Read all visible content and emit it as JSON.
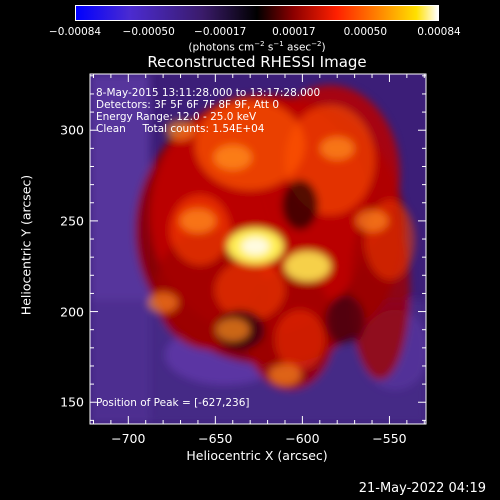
{
  "chart_data": {
    "type": "heatmap",
    "title": "Reconstructed RHESSI Image",
    "xlabel": "Heliocentric X (arcsec)",
    "ylabel": "Heliocentric Y (arcsec)",
    "xlim": [
      -722,
      -529
    ],
    "ylim": [
      138,
      331
    ],
    "xticks": [
      -700,
      -650,
      -600,
      -550
    ],
    "yticks": [
      150,
      200,
      250,
      300
    ],
    "xtick_labels": [
      "−700",
      "−650",
      "−600",
      "−550"
    ],
    "ytick_labels": [
      "150",
      "200",
      "250",
      "300"
    ],
    "info_lines": [
      "8-May-2015 13:11:28.000 to 13:17:28.000",
      "Detectors: 3F 5F 6F 7F 8F 9F, Att 0",
      "Energy Range: 12.0 - 25.0 keV",
      "Clean     Total counts: 1.54E+04"
    ],
    "peak_label": "Position of Peak = [-627,236]",
    "peak": [
      -627,
      236
    ],
    "colorbar": {
      "range": [
        -0.00084,
        0.00084
      ],
      "tick_values": [
        -0.00084,
        -0.0005,
        -0.00017,
        0.00017,
        0.0005,
        0.00084
      ],
      "tick_labels": [
        "−0.00084",
        "−0.00050",
        "−0.00017",
        "0.00017",
        "0.00050",
        "0.00084"
      ],
      "units_label": "(photons cm",
      "units_exp1": "−2",
      "units_mid": " s",
      "units_exp2": "−1",
      "units_mid2": " asec",
      "units_exp3": "−2",
      "units_end": ")"
    },
    "sources": [
      {
        "x": -627,
        "y": 236,
        "intensity": 1.0
      },
      {
        "x": -597,
        "y": 225,
        "intensity": 0.75
      },
      {
        "x": -640,
        "y": 285,
        "intensity": 0.55
      },
      {
        "x": -660,
        "y": 250,
        "intensity": 0.5
      },
      {
        "x": -580,
        "y": 290,
        "intensity": 0.45
      },
      {
        "x": -640,
        "y": 190,
        "intensity": 0.45
      },
      {
        "x": -610,
        "y": 165,
        "intensity": 0.4
      },
      {
        "x": -560,
        "y": 250,
        "intensity": 0.4
      },
      {
        "x": -680,
        "y": 205,
        "intensity": 0.35
      },
      {
        "x": -670,
        "y": 300,
        "intensity": 0.35
      }
    ]
  },
  "footer": "21-May-2022 04:19"
}
